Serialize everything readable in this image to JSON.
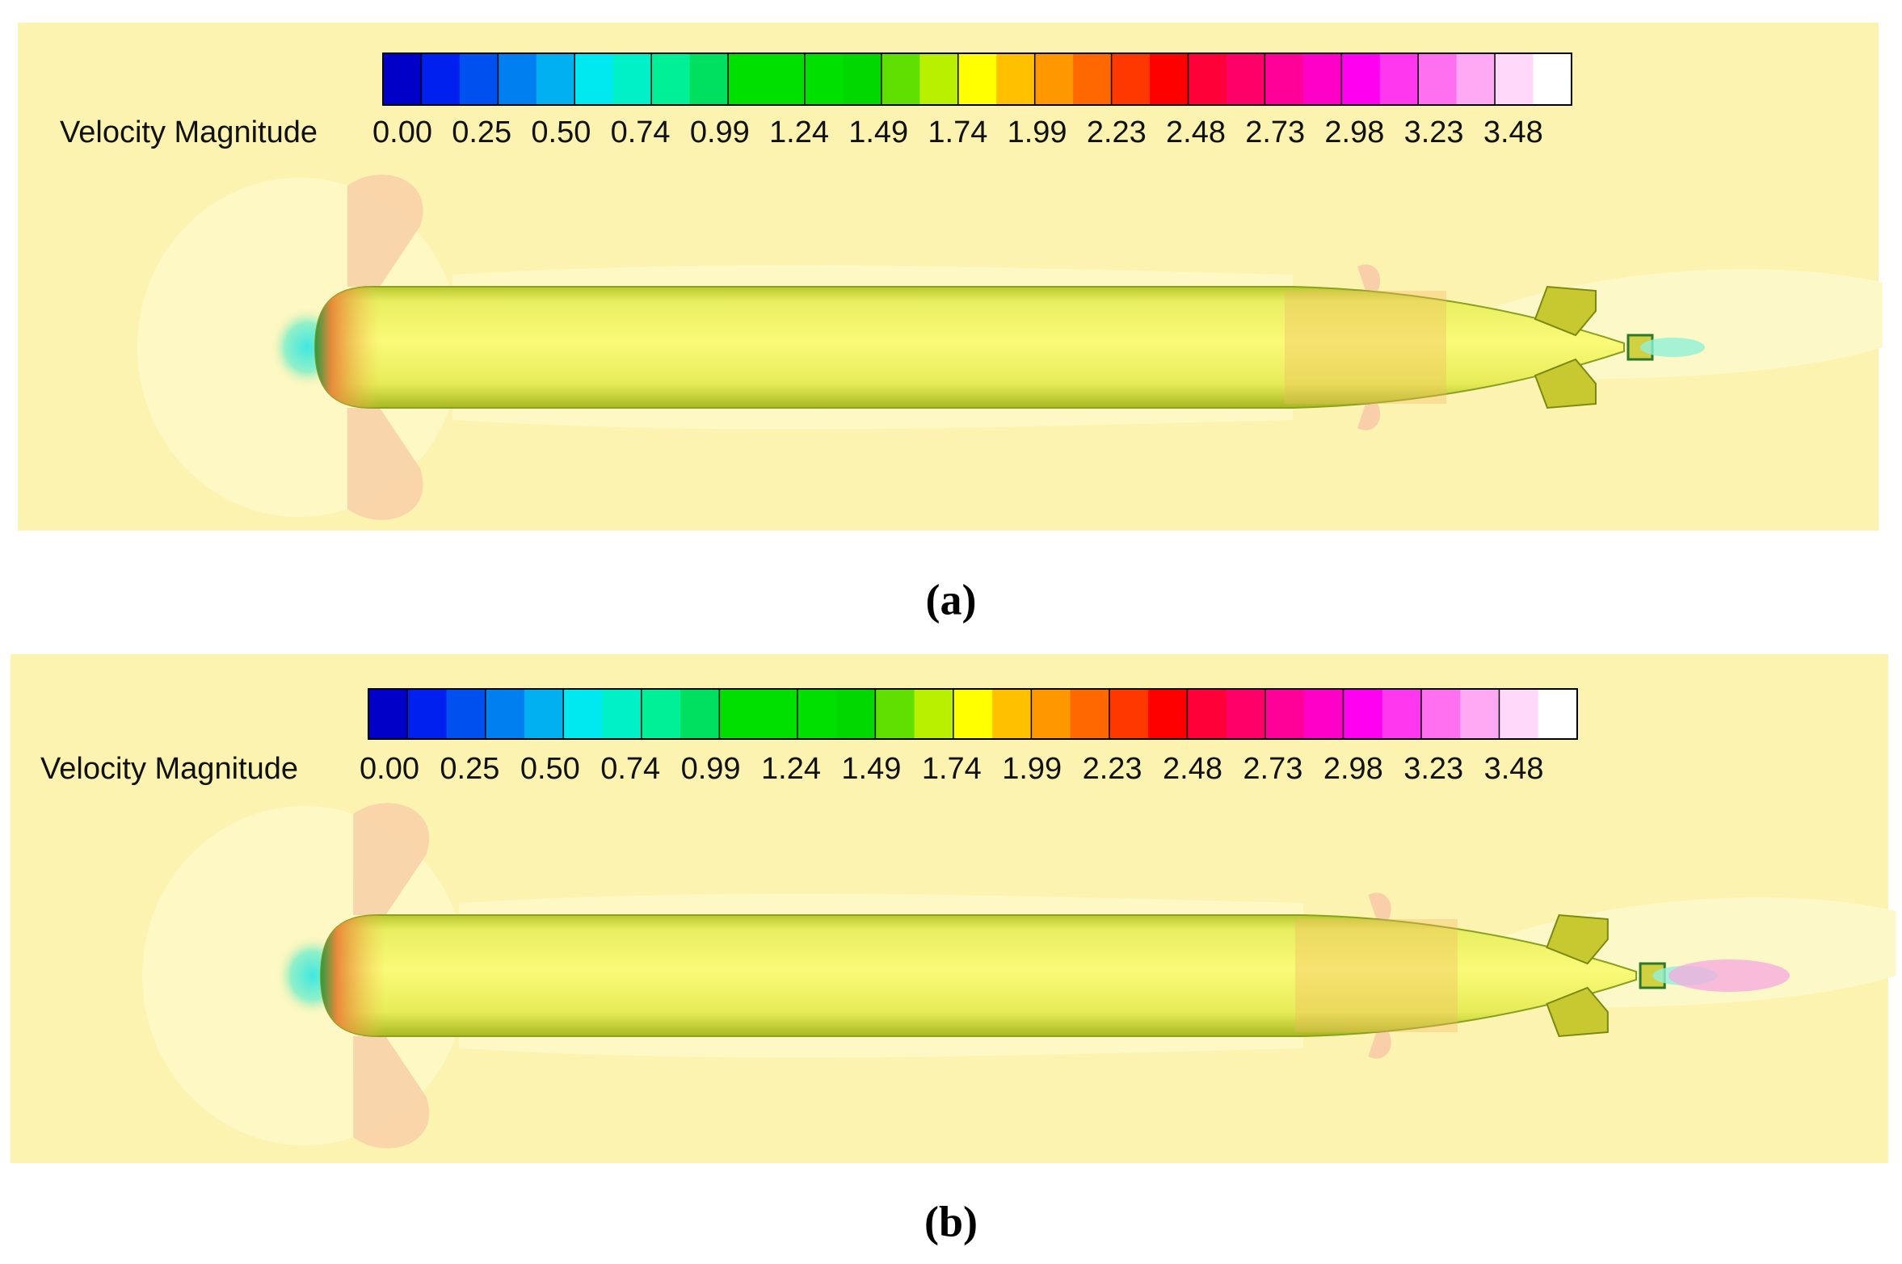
{
  "panels": [
    {
      "legend_title": "Velocity Magnitude",
      "legend_labels": [
        "0.00",
        "0.25",
        "0.50",
        "0.74",
        "0.99",
        "1.24",
        "1.49",
        "1.74",
        "1.99",
        "2.23",
        "2.48",
        "2.73",
        "2.98",
        "3.23",
        "3.48"
      ],
      "caption": "(a)"
    },
    {
      "legend_title": "Velocity Magnitude",
      "legend_labels": [
        "0.00",
        "0.25",
        "0.50",
        "0.74",
        "0.99",
        "1.24",
        "1.49",
        "1.74",
        "1.99",
        "2.23",
        "2.48",
        "2.73",
        "2.98",
        "3.23",
        "3.48"
      ],
      "caption": "(b)"
    }
  ]
}
